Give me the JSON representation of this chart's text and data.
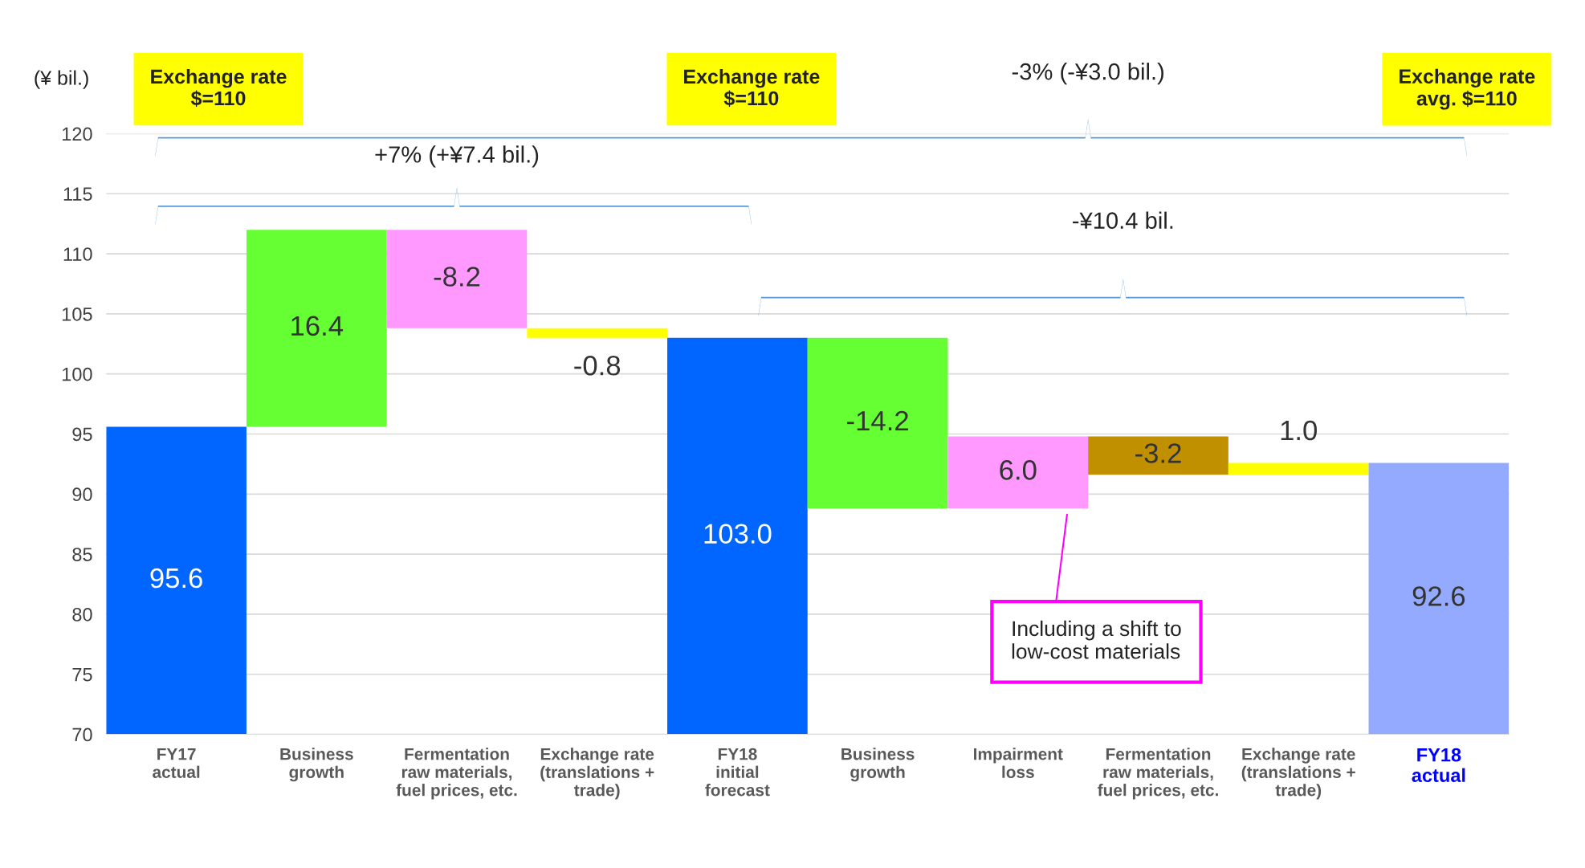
{
  "chart_data": {
    "type": "bar",
    "ylabel": "(¥ bil.)",
    "categories": [
      "FY17\nactual",
      "Business\ngrowth",
      "Fermentation\nraw materials,\nfuel prices, etc.",
      "Exchange rate\n(translations +\ntrade)",
      "FY18\ninitial\nforecast",
      "Business\ngrowth",
      "Impairment\nloss",
      "Fermentation\nraw materials,\nfuel prices, etc.",
      "Exchange rate\n(translations +\ntrade)",
      "FY18\nactual"
    ],
    "values": [
      95.6,
      16.4,
      -8.2,
      -0.8,
      103.0,
      -14.2,
      6.0,
      -3.2,
      1.0,
      92.6
    ],
    "base": [
      0,
      95.6,
      112.0,
      103.8,
      0,
      103.0,
      88.8,
      94.8,
      91.6,
      0
    ],
    "colors": [
      "#0066ff",
      "#66ff33",
      "#ff99ff",
      "#ffff00",
      "#0066ff",
      "#66ff33",
      "#ff99ff",
      "#c09000",
      "#ffff00",
      "#94aaff"
    ],
    "value_labels": [
      "95.6",
      "16.4",
      "-8.2",
      "-0.8",
      "103.0",
      "-14.2",
      "6.0",
      "-3.2",
      "1.0",
      "92.6"
    ],
    "ylim": [
      70,
      120
    ],
    "yticks": [
      70,
      75,
      80,
      85,
      90,
      95,
      100,
      105,
      110,
      115,
      120
    ],
    "grid": "y",
    "annotations": [
      "+7% (+¥7.4 bil.)",
      "-3% (-¥3.0 bil.)",
      "-¥10.4 bil.",
      "Exchange rate\n$=110",
      "Exchange rate\n$=110",
      "Exchange rate\navg. $=110",
      "Including a shift to\nlow-cost materials"
    ]
  }
}
